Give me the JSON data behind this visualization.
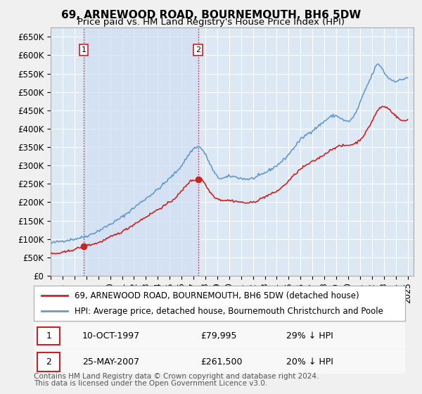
{
  "title": "69, ARNEWOOD ROAD, BOURNEMOUTH, BH6 5DW",
  "subtitle": "Price paid vs. HM Land Registry's House Price Index (HPI)",
  "ylabel_ticks": [
    "£0",
    "£50K",
    "£100K",
    "£150K",
    "£200K",
    "£250K",
    "£300K",
    "£350K",
    "£400K",
    "£450K",
    "£500K",
    "£550K",
    "£600K",
    "£650K"
  ],
  "ytick_values": [
    0,
    50000,
    100000,
    150000,
    200000,
    250000,
    300000,
    350000,
    400000,
    450000,
    500000,
    550000,
    600000,
    650000
  ],
  "xlim": [
    1995.0,
    2025.5
  ],
  "ylim": [
    0,
    675000
  ],
  "background_color": "#dde8f5",
  "plot_bg_color": "#dde8f5",
  "grid_color": "#ffffff",
  "hpi_line_color": "#6699cc",
  "price_line_color": "#cc2222",
  "marker_color": "#cc2222",
  "sale1_x": 1997.78,
  "sale1_y": 79995,
  "sale2_x": 2007.39,
  "sale2_y": 261500,
  "vline_color": "#cc2222",
  "vline_style": ":",
  "legend_label_price": "69, ARNEWOOD ROAD, BOURNEMOUTH, BH6 5DW (detached house)",
  "legend_label_hpi": "HPI: Average price, detached house, Bournemouth Christchurch and Poole",
  "annotation1_label": "1",
  "annotation2_label": "2",
  "table_row1": [
    "1",
    "10-OCT-1997",
    "£79,995",
    "29% ↓ HPI"
  ],
  "table_row2": [
    "2",
    "25-MAY-2007",
    "£261,500",
    "20% ↓ HPI"
  ],
  "footnote1": "Contains HM Land Registry data © Crown copyright and database right 2024.",
  "footnote2": "This data is licensed under the Open Government Licence v3.0.",
  "title_fontsize": 11,
  "subtitle_fontsize": 9.5,
  "tick_fontsize": 8.5,
  "legend_fontsize": 8.5,
  "table_fontsize": 9,
  "footnote_fontsize": 7.5
}
